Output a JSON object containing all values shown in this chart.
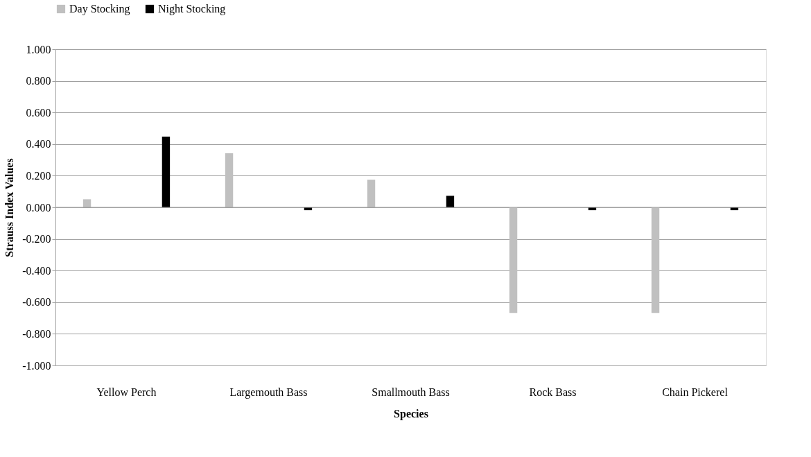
{
  "chart_data": {
    "type": "bar",
    "xlabel": "Species",
    "ylabel": "Strauss Index Values",
    "categories": [
      "Yellow Perch",
      "Largemouth Bass",
      "Smallmouth Bass",
      "Rock Bass",
      "Chain Pickerel"
    ],
    "series": [
      {
        "name": "Day Stocking",
        "color": "#c0c0c0",
        "values": [
          0.051,
          0.342,
          0.175,
          -0.668,
          -0.668
        ]
      },
      {
        "name": "Night Stocking",
        "color": "#000000",
        "values": [
          0.447,
          -0.018,
          0.073,
          -0.018,
          -0.018
        ]
      }
    ],
    "ylim": [
      -1.0,
      1.0
    ],
    "yticks": [
      {
        "value": 1.0,
        "label": "1.000"
      },
      {
        "value": 0.8,
        "label": "0.800"
      },
      {
        "value": 0.6,
        "label": "0.600"
      },
      {
        "value": 0.4,
        "label": "0.400"
      },
      {
        "value": 0.2,
        "label": "0.200"
      },
      {
        "value": 0,
        "label": "0.000"
      },
      {
        "value": -0.2,
        "label": "-0.200"
      },
      {
        "value": -0.4,
        "label": "-0.400"
      },
      {
        "value": -0.6,
        "label": "-0.600"
      },
      {
        "value": -0.8,
        "label": "-0.800"
      },
      {
        "value": -1.0,
        "label": "-1.000"
      }
    ],
    "grid": "y",
    "legend": "top"
  }
}
